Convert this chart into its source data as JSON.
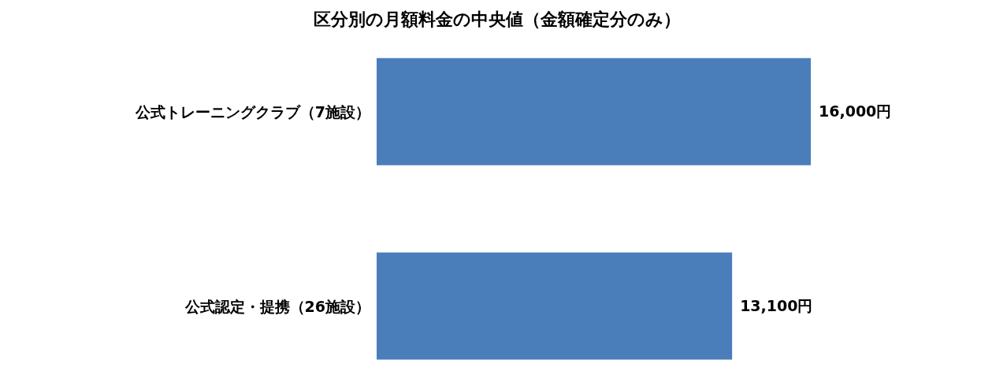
{
  "chart_data": {
    "type": "bar",
    "orientation": "horizontal",
    "title": "区分別の月額料金の中央値（金額確定分のみ）",
    "categories": [
      "公式トレーニングクラブ（7施設）",
      "公式認定・提携（26施設）"
    ],
    "values": [
      16000,
      13100
    ],
    "value_labels": [
      "16,000円",
      "13,100円"
    ],
    "color": "#4a7ebb"
  }
}
